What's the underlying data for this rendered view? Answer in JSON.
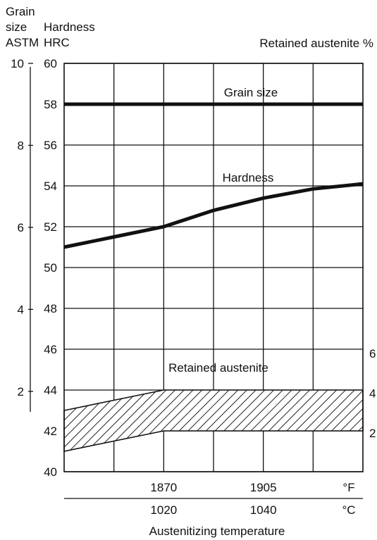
{
  "chart_data": {
    "type": "line",
    "axes": {
      "grain_size": {
        "header_lines": [
          "Grain",
          "size",
          "ASTM"
        ],
        "ticks": [
          10,
          8,
          6,
          4,
          2
        ],
        "range": [
          1.5,
          10
        ]
      },
      "hardness": {
        "header_lines": [
          "Hardness",
          "HRC"
        ],
        "ticks": [
          60,
          58,
          56,
          54,
          52,
          50,
          48,
          46,
          44,
          42,
          40
        ],
        "range": [
          40,
          60
        ]
      },
      "retained_austenite": {
        "header": "Retained austenite %",
        "ticks": [
          6,
          4,
          2
        ],
        "range": [
          0,
          6
        ]
      },
      "x": {
        "label": "Austenitizing temperature",
        "range_c": [
          1000,
          1060
        ],
        "celsius_ticks": [
          1020,
          1040
        ],
        "celsius_unit": "°C",
        "fahrenheit_ticks": [
          1870,
          1905
        ],
        "fahrenheit_ticks_c": [
          1020,
          1040
        ],
        "fahrenheit_unit": "°F",
        "grid_c": [
          1010,
          1020,
          1030,
          1040,
          1050
        ]
      }
    },
    "series": [
      {
        "name": "Grain size",
        "axis": "hardness",
        "x": [
          1000,
          1060
        ],
        "y": [
          58,
          58
        ]
      },
      {
        "name": "Hardness",
        "axis": "hardness",
        "x": [
          1000,
          1010,
          1020,
          1030,
          1040,
          1050,
          1060
        ],
        "y": [
          51.0,
          51.5,
          52.0,
          52.8,
          53.4,
          53.85,
          54.1
        ]
      }
    ],
    "band": {
      "name": "Retained austenite",
      "axis": "hardness",
      "upper": {
        "x": [
          1000,
          1020,
          1060
        ],
        "y": [
          43.0,
          44.0,
          44.0
        ]
      },
      "lower": {
        "x": [
          1000,
          1020,
          1060
        ],
        "y": [
          41.0,
          42.0,
          42.0
        ]
      }
    },
    "grid": true
  }
}
